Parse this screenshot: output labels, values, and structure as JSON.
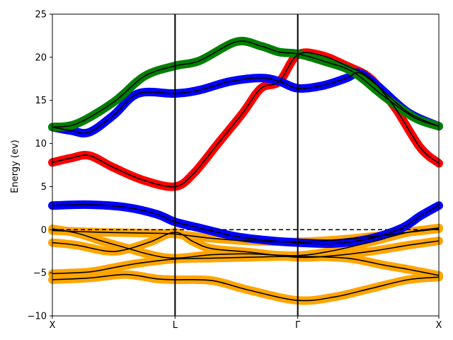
{
  "chart_data": {
    "type": "line",
    "title": "",
    "xlabel": "",
    "ylabel": "Energy (ev)",
    "ylim": [
      -10,
      25
    ],
    "yticks": [
      -10,
      -5,
      0,
      5,
      10,
      15,
      20,
      25
    ],
    "kpoints": [
      {
        "label": "X",
        "x": 0
      },
      {
        "label": "L",
        "x": 1
      },
      {
        "label": "Γ",
        "x": 2
      },
      {
        "label": "X",
        "x": 3.15
      }
    ],
    "fermi_level": 0,
    "grid": false,
    "legend": "none",
    "projection_colors": {
      "s": "#ff0000",
      "p": "#0000ff",
      "d": "#ffa500",
      "f": "#008000"
    },
    "bands": [
      {
        "color": "#ffa500",
        "points": [
          [
            0,
            -5.8
          ],
          [
            0.3,
            -5.6
          ],
          [
            0.6,
            -5.2
          ],
          [
            0.85,
            -5.7
          ],
          [
            1,
            -5.8
          ],
          [
            1.3,
            -5.9
          ],
          [
            1.6,
            -7.0
          ],
          [
            2,
            -8.2
          ],
          [
            2.3,
            -7.8
          ],
          [
            2.6,
            -6.8
          ],
          [
            2.9,
            -5.8
          ],
          [
            3.15,
            -5.5
          ]
        ]
      },
      {
        "color": "#ffa500",
        "points": [
          [
            0,
            -5.1
          ],
          [
            0.3,
            -4.9
          ],
          [
            0.5,
            -4.4
          ],
          [
            0.7,
            -3.9
          ],
          [
            1,
            -3.4
          ],
          [
            1.3,
            -3.3
          ],
          [
            1.6,
            -3.2
          ],
          [
            2,
            -3.1
          ],
          [
            2.4,
            -3.3
          ],
          [
            2.7,
            -4.1
          ],
          [
            2.9,
            -4.6
          ],
          [
            3.15,
            -5.3
          ]
        ]
      },
      {
        "color": "#ffa500",
        "points": [
          [
            0,
            -1.5
          ],
          [
            0.2,
            -1.8
          ],
          [
            0.45,
            -2.5
          ],
          [
            0.6,
            -2.3
          ],
          [
            0.8,
            -1.4
          ],
          [
            1,
            -0.3
          ],
          [
            1.15,
            -1.4
          ],
          [
            1.3,
            -2.2
          ],
          [
            1.6,
            -2.6
          ],
          [
            2,
            -3.2
          ],
          [
            2.3,
            -3.0
          ],
          [
            2.6,
            -2.5
          ],
          [
            2.9,
            -1.8
          ],
          [
            3.15,
            -1.3
          ]
        ]
      },
      {
        "color": "#ffa500",
        "points": [
          [
            0,
            0.1
          ],
          [
            0.2,
            -0.4
          ],
          [
            0.4,
            -1.3
          ],
          [
            0.6,
            -2.1
          ],
          [
            0.8,
            -2.9
          ],
          [
            1,
            -3.3
          ],
          [
            1.3,
            -2.9
          ],
          [
            1.6,
            -2.8
          ],
          [
            2,
            -3.0
          ],
          [
            2.3,
            -2.4
          ],
          [
            2.6,
            -1.4
          ],
          [
            2.9,
            -0.3
          ],
          [
            3.15,
            0.2
          ]
        ]
      },
      {
        "color": "#ffa500",
        "points": [
          [
            0,
            -0.1
          ],
          [
            0.4,
            -0.3
          ],
          [
            0.8,
            -0.4
          ],
          [
            1,
            -0.5
          ],
          [
            1.3,
            -1.0
          ],
          [
            1.6,
            -1.3
          ],
          [
            2,
            -1.4
          ],
          [
            2.3,
            -1.2
          ],
          [
            2.6,
            -0.8
          ],
          [
            2.9,
            -0.3
          ],
          [
            3.15,
            0.1
          ]
        ]
      },
      {
        "color": "#0000ff",
        "points": [
          [
            0,
            2.8
          ],
          [
            0.3,
            2.9
          ],
          [
            0.6,
            2.6
          ],
          [
            0.85,
            1.8
          ],
          [
            1,
            0.9
          ],
          [
            1.2,
            0.2
          ],
          [
            1.5,
            -0.8
          ],
          [
            1.8,
            -1.3
          ],
          [
            2,
            -1.5
          ],
          [
            2.3,
            -1.6
          ],
          [
            2.6,
            -1.0
          ],
          [
            2.85,
            0.2
          ],
          [
            3.0,
            1.6
          ],
          [
            3.15,
            2.8
          ]
        ]
      },
      {
        "color": "#ff0000",
        "points": [
          [
            0,
            7.8
          ],
          [
            0.15,
            8.3
          ],
          [
            0.3,
            8.6
          ],
          [
            0.5,
            7.2
          ],
          [
            0.75,
            5.7
          ],
          [
            1,
            5.0
          ],
          [
            1.15,
            6.5
          ],
          [
            1.35,
            10.0
          ],
          [
            1.55,
            13.5
          ],
          [
            1.7,
            16.4
          ],
          [
            1.85,
            17.2
          ],
          [
            2,
            20.3
          ],
          [
            2.2,
            20.2
          ],
          [
            2.4,
            19.0
          ],
          [
            2.55,
            18.0
          ],
          [
            2.65,
            16.7
          ],
          [
            2.8,
            14.0
          ],
          [
            3.0,
            9.5
          ],
          [
            3.15,
            7.7
          ]
        ]
      },
      {
        "color": "#0000ff",
        "points": [
          [
            0,
            11.9
          ],
          [
            0.15,
            11.5
          ],
          [
            0.3,
            11.3
          ],
          [
            0.5,
            13.3
          ],
          [
            0.7,
            15.8
          ],
          [
            1,
            15.8
          ],
          [
            1.2,
            16.2
          ],
          [
            1.45,
            17.2
          ],
          [
            1.7,
            17.6
          ],
          [
            1.85,
            17.2
          ],
          [
            2,
            16.4
          ],
          [
            2.2,
            16.7
          ],
          [
            2.4,
            17.6
          ],
          [
            2.5,
            18.2
          ],
          [
            2.65,
            16.7
          ],
          [
            2.9,
            13.6
          ],
          [
            3.15,
            12.0
          ]
        ]
      },
      {
        "color": "#008000",
        "points": [
          [
            0,
            11.9
          ],
          [
            0.2,
            12.3
          ],
          [
            0.5,
            14.8
          ],
          [
            0.75,
            17.8
          ],
          [
            1,
            19.0
          ],
          [
            1.2,
            19.6
          ],
          [
            1.5,
            21.8
          ],
          [
            1.7,
            21.3
          ],
          [
            1.85,
            20.6
          ],
          [
            2,
            20.4
          ],
          [
            2.2,
            19.6
          ],
          [
            2.45,
            18.3
          ],
          [
            2.7,
            15.5
          ],
          [
            2.95,
            13.0
          ],
          [
            3.15,
            12.0
          ]
        ]
      }
    ],
    "x_ticks_labels": [
      "X",
      "L",
      "Γ",
      "X"
    ]
  }
}
